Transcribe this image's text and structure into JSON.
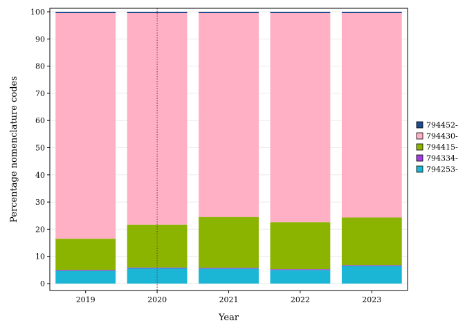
{
  "chart_data": {
    "type": "bar",
    "stacked": true,
    "title": "",
    "xlabel": "Year",
    "ylabel": "Percentage nomenclature codes",
    "ylim": [
      0,
      100
    ],
    "yticks": [
      0,
      10,
      20,
      30,
      40,
      50,
      60,
      70,
      80,
      90,
      100
    ],
    "grid": true,
    "legend_position": "right",
    "categories": [
      "2019",
      "2020",
      "2021",
      "2022",
      "2023"
    ],
    "series": [
      {
        "name": "794253-",
        "color": "#1BB6D6",
        "values": [
          4.7,
          5.6,
          5.5,
          5.0,
          6.5
        ]
      },
      {
        "name": "794334-",
        "color": "#A23CE0",
        "values": [
          0.3,
          0.3,
          0.3,
          0.3,
          0.3
        ]
      },
      {
        "name": "794415-",
        "color": "#8AB400",
        "values": [
          11.5,
          15.8,
          18.7,
          17.3,
          17.5
        ]
      },
      {
        "name": "794430-",
        "color": "#FFB0C5",
        "values": [
          83.0,
          77.8,
          75.0,
          76.9,
          75.2
        ]
      },
      {
        "name": "794452-",
        "color": "#1E4A8F",
        "values": [
          0.5,
          0.5,
          0.5,
          0.5,
          0.5
        ]
      }
    ],
    "annotations": [
      {
        "type": "vline",
        "x": "2020",
        "style": "dotted",
        "color": "#8B2A2A"
      }
    ]
  }
}
